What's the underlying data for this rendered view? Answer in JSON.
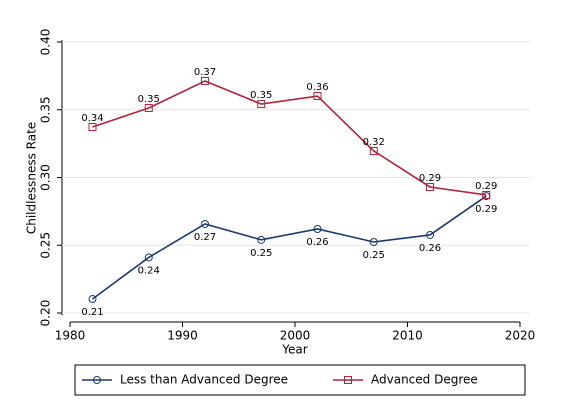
{
  "chart_data": {
    "type": "line",
    "x_label": "Year",
    "y_label": "Childlessness Rate",
    "x": [
      1982,
      1987,
      1992,
      1997,
      2002,
      2007,
      2012,
      2017
    ],
    "series": [
      {
        "name": "Less than Advanced Degree",
        "color": "#1a3a6e",
        "marker": "circle",
        "values": [
          0.2103,
          0.241,
          0.2657,
          0.254,
          0.262,
          0.2524,
          0.2576,
          0.2863
        ],
        "value_labels": [
          "0.21",
          "0.24",
          "0.27",
          "0.25",
          "0.26",
          "0.25",
          "0.26",
          "0.29"
        ]
      },
      {
        "name": "Advanced Degree",
        "color": "#b0243a",
        "marker": "square",
        "values": [
          0.3373,
          0.3513,
          0.3712,
          0.3542,
          0.3601,
          0.3196,
          0.293,
          0.2871
        ],
        "value_labels": [
          "0.34",
          "0.35",
          "0.37",
          "0.35",
          "0.36",
          "0.32",
          "0.29",
          "0.29"
        ]
      }
    ],
    "xlim": [
      1980,
      2020
    ],
    "xticks": [
      1980,
      1990,
      2000,
      2010,
      2020
    ],
    "ylim": [
      0.2,
      0.4
    ],
    "yticks": [
      {
        "value": 0.2,
        "label": "0.20"
      },
      0.25,
      {
        "value": 0.3,
        "label": "0.30"
      },
      0.35,
      {
        "value": 0.4,
        "label": "0.40"
      }
    ],
    "grid": true,
    "legend": "bottom"
  }
}
